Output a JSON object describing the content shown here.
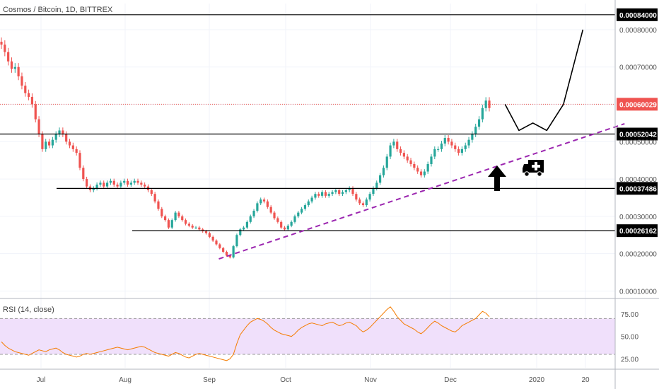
{
  "title": "Cosmos / Bitcoin, 1D, BITTREX",
  "rsi_title": "RSI (14, close)",
  "colors": {
    "up": "#26a69a",
    "down": "#ef5350",
    "rsi": "#f57c00",
    "trendline": "#9c27b0",
    "price_line": "#ef5350",
    "level": "#000000"
  },
  "icons": {
    "arrow": "up-arrow-icon",
    "ambulance": "ambulance-icon"
  },
  "chart_data": [
    {
      "type": "candlestick",
      "title": "Cosmos / Bitcoin, 1D, BITTREX",
      "ylim": [
        8e-05,
        0.00087
      ],
      "yticks": [
        "0.00080000",
        "0.00070000",
        "0.00060000",
        "0.00050000",
        "0.00040000",
        "0.00030000",
        "0.00020000",
        "0.00010000"
      ],
      "xticks": [
        "Jul",
        "Aug",
        "Sep",
        "Oct",
        "Nov",
        "Dec",
        "2020",
        "20"
      ],
      "horizontal_levels": [
        "0.00084000",
        "0.00052042",
        "0.00037486",
        "0.00026162"
      ],
      "last_price": "0.00060029",
      "trendline": {
        "from": {
          "date": "Sep 3",
          "price": 0.000186
        },
        "to": {
          "date": "Jan 27",
          "price": 0.000548
        }
      },
      "projection": [
        {
          "date": "Dec 15",
          "price": 0.0006
        },
        {
          "date": "Dec 20",
          "price": 0.00053
        },
        {
          "date": "Dec 25",
          "price": 0.00055
        },
        {
          "date": "Dec 30",
          "price": 0.00053
        },
        {
          "date": "Jan 5",
          "price": 0.0006
        },
        {
          "date": "Jan 12",
          "price": 0.0008
        }
      ],
      "closes": [
        0.00076,
        0.00074,
        0.000715,
        0.000695,
        0.0007,
        0.000675,
        0.00065,
        0.00063,
        0.00062,
        0.0006,
        0.00056,
        0.00052,
        0.00048,
        0.0005,
        0.00049,
        0.000505,
        0.00052,
        0.00053,
        0.00052,
        0.0005,
        0.00049,
        0.00048,
        0.00047,
        0.00043,
        0.0004,
        0.00038,
        0.00037,
        0.000375,
        0.000385,
        0.00039,
        0.00038,
        0.00039,
        0.000395,
        0.000385,
        0.00038,
        0.00039,
        0.000395,
        0.000385,
        0.00039,
        0.000395,
        0.00039,
        0.000385,
        0.00038,
        0.00037,
        0.00036,
        0.00034,
        0.00032,
        0.0003,
        0.00029,
        0.00027,
        0.00029,
        0.00031,
        0.0003,
        0.00029,
        0.00028,
        0.000275,
        0.00027,
        0.00027,
        0.000265,
        0.00026,
        0.000255,
        0.000245,
        0.000235,
        0.000225,
        0.000215,
        0.000205,
        0.000195,
        0.00019,
        0.00022,
        0.00025,
        0.000265,
        0.00027,
        0.000285,
        0.0003,
        0.000315,
        0.000335,
        0.000345,
        0.00034,
        0.000325,
        0.00031,
        0.000295,
        0.000285,
        0.00027,
        0.000265,
        0.000275,
        0.000285,
        0.0003,
        0.00031,
        0.00032,
        0.00033,
        0.00034,
        0.00035,
        0.00036,
        0.000355,
        0.000365,
        0.000355,
        0.00036,
        0.000365,
        0.00037,
        0.00036,
        0.000365,
        0.00037,
        0.000375,
        0.00036,
        0.000345,
        0.000335,
        0.00033,
        0.000345,
        0.00036,
        0.000375,
        0.00039,
        0.00041,
        0.00043,
        0.00046,
        0.00049,
        0.0005,
        0.00048,
        0.00047,
        0.00046,
        0.00045,
        0.00044,
        0.00043,
        0.00042,
        0.00041,
        0.00042,
        0.00044,
        0.00046,
        0.00048,
        0.00048,
        0.000495,
        0.00051,
        0.0005,
        0.00049,
        0.00048,
        0.00047,
        0.00048,
        0.00049,
        0.000505,
        0.00052,
        0.00054,
        0.00056,
        0.00059,
        0.00061,
        0.00059
      ],
      "rsi": {
        "ylim": [
          15,
          90
        ],
        "yticks": [
          "75.00",
          "50.00",
          "25.00"
        ],
        "bands": [
          30,
          70
        ],
        "values": [
          44,
          40,
          37,
          35,
          33,
          32,
          31,
          30,
          29,
          31,
          33,
          35,
          34,
          33,
          35,
          36,
          37,
          35,
          32,
          30,
          29,
          28,
          27,
          28,
          30,
          31,
          30,
          31,
          32,
          33,
          34,
          35,
          36,
          37,
          38,
          37,
          36,
          35,
          36,
          37,
          38,
          39,
          38,
          36,
          34,
          32,
          31,
          30,
          29,
          28,
          30,
          32,
          31,
          29,
          27,
          26,
          28,
          30,
          31,
          30,
          29,
          28,
          27,
          26,
          25,
          24,
          23,
          25,
          30,
          42,
          52,
          57,
          62,
          66,
          68,
          70,
          69,
          67,
          64,
          60,
          57,
          55,
          53,
          52,
          51,
          50,
          53,
          57,
          60,
          62,
          64,
          65,
          64,
          63,
          62,
          64,
          65,
          66,
          64,
          62,
          63,
          65,
          66,
          64,
          62,
          58,
          55,
          57,
          60,
          64,
          68,
          72,
          76,
          80,
          83,
          78,
          72,
          68,
          64,
          62,
          60,
          58,
          55,
          53,
          56,
          60,
          64,
          67,
          65,
          62,
          60,
          58,
          56,
          55,
          58,
          62,
          64,
          66,
          68,
          70,
          74,
          78,
          76,
          72
        ]
      }
    }
  ]
}
